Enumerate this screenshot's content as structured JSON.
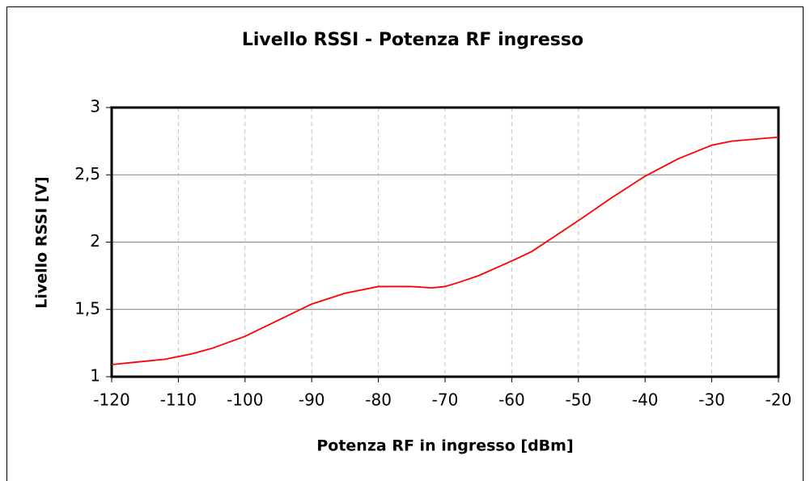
{
  "chart_data": {
    "type": "line",
    "title": "Livello RSSI - Potenza RF ingresso",
    "xlabel": "Potenza RF in ingresso [dBm]",
    "ylabel": "Livello RSSI [V]",
    "x": [
      -120,
      -116,
      -112,
      -108,
      -105,
      -100,
      -95,
      -90,
      -85,
      -80,
      -75,
      -72,
      -70,
      -68,
      -65,
      -60,
      -57,
      -50,
      -45,
      -40,
      -35,
      -32,
      -30,
      -27,
      -20
    ],
    "values": [
      1.09,
      1.11,
      1.13,
      1.17,
      1.21,
      1.3,
      1.42,
      1.54,
      1.62,
      1.67,
      1.67,
      1.66,
      1.67,
      1.7,
      1.75,
      1.86,
      1.93,
      2.16,
      2.33,
      2.49,
      2.62,
      2.68,
      2.72,
      2.75,
      2.78
    ],
    "color": "#ff0000",
    "xlim": [
      -120,
      -20
    ],
    "xticks": [
      -120,
      -110,
      -100,
      -90,
      -80,
      -70,
      -60,
      -50,
      -40,
      -30,
      -20
    ],
    "ylim": [
      1,
      3
    ],
    "yticks": [
      1,
      {
        "value": 1.5,
        "label": "1,5"
      },
      2,
      {
        "value": 2.5,
        "label": "2,5"
      },
      3
    ],
    "grid": true
  }
}
